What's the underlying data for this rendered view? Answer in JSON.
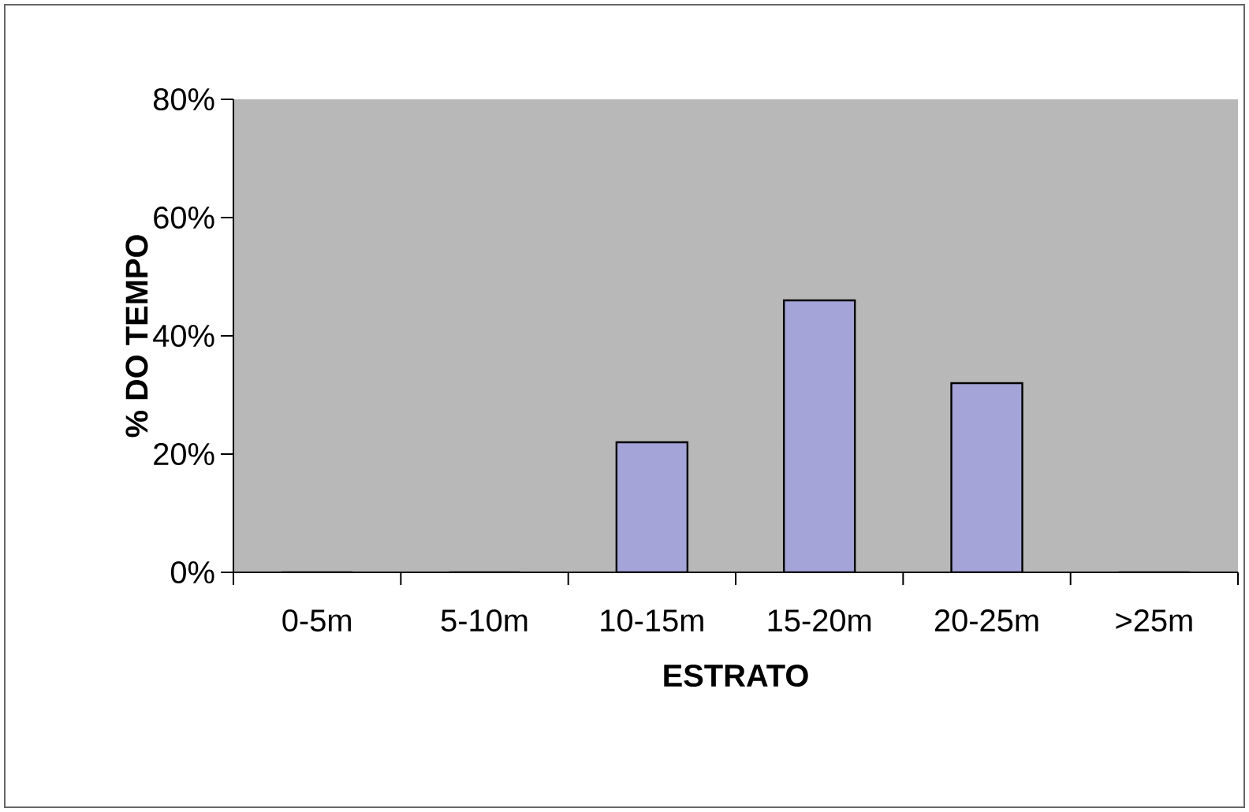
{
  "chart_data": {
    "type": "bar",
    "xlabel": "ESTRATO",
    "ylabel": "% DO TEMPO",
    "categories": [
      "0-5m",
      "5-10m",
      "10-15m",
      "15-20m",
      "20-25m",
      ">25m"
    ],
    "values": [
      0,
      0,
      22,
      46,
      32,
      0
    ],
    "color": "#a4a4d8",
    "ylim": [
      0,
      80
    ],
    "yticks": [
      {
        "value": 0,
        "label": "0%"
      },
      {
        "value": 20,
        "label": "20%"
      },
      {
        "value": 40,
        "label": "40%"
      },
      {
        "value": 60,
        "label": "60%"
      },
      {
        "value": 80,
        "label": "80%"
      }
    ],
    "grid": false
  }
}
